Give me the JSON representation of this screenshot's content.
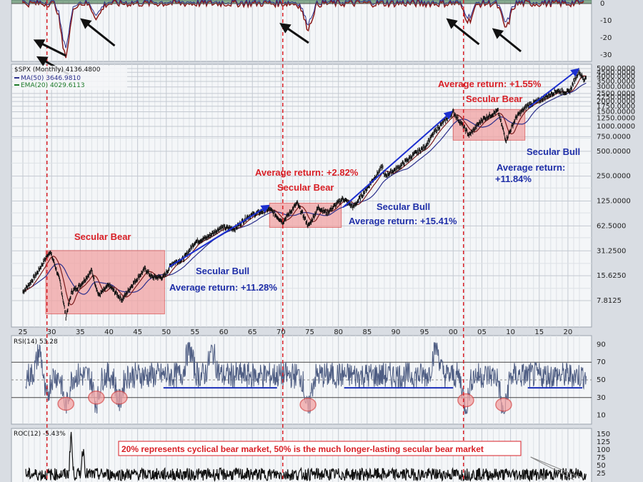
{
  "chart_data": {
    "type": "line",
    "symbol": "$SPX (Monthly) 4136.4800",
    "legend": {
      "ma50": "MA(50) 3646.9810",
      "ema20": "EMA(20) 4029.6113"
    },
    "x_tick_labels": [
      "25",
      "30",
      "35",
      "40",
      "45",
      "50",
      "55",
      "60",
      "65",
      "70",
      "75",
      "80",
      "85",
      "90",
      "95",
      "00",
      "05",
      "10",
      "15",
      "20"
    ],
    "y_axis_scale": "log",
    "y_tick_labels": [
      "5000.0000",
      "4500.0000",
      "4000.0000",
      "3500.0000",
      "3000.0000",
      "2500.0000",
      "2250.0000",
      "2000.0000",
      "1750.0000",
      "1500.0000",
      "1250.0000",
      "1000.0000",
      "750.0000",
      "500.0000",
      "250.0000",
      "125.0000",
      "62.5000",
      "31.2500",
      "15.6250",
      "7.8125"
    ],
    "dashed_year_markers": [
      "29",
      "70",
      "01"
    ],
    "series": [
      {
        "name": "$SPX",
        "color": "#111111",
        "points": [
          [
            1925.0,
            10
          ],
          [
            1926.0,
            12
          ],
          [
            1927.5,
            17
          ],
          [
            1929.7,
            31
          ],
          [
            1930.5,
            22
          ],
          [
            1931.5,
            13
          ],
          [
            1932.5,
            5
          ],
          [
            1933.5,
            10
          ],
          [
            1935.0,
            12
          ],
          [
            1937.0,
            18
          ],
          [
            1938.2,
            9
          ],
          [
            1940.0,
            12
          ],
          [
            1942.3,
            8
          ],
          [
            1944.0,
            12
          ],
          [
            1946.3,
            19
          ],
          [
            1947.5,
            15
          ],
          [
            1949.5,
            15
          ],
          [
            1951.0,
            22
          ],
          [
            1953.0,
            25
          ],
          [
            1955.0,
            40
          ],
          [
            1957.0,
            45
          ],
          [
            1959.5,
            60
          ],
          [
            1962.0,
            58
          ],
          [
            1964.0,
            80
          ],
          [
            1966.0,
            90
          ],
          [
            1968.0,
            100
          ],
          [
            1970.3,
            70
          ],
          [
            1972.8,
            118
          ],
          [
            1974.8,
            62
          ],
          [
            1976.5,
            105
          ],
          [
            1978.0,
            90
          ],
          [
            1980.8,
            135
          ],
          [
            1982.6,
            105
          ],
          [
            1985.0,
            180
          ],
          [
            1987.7,
            330
          ],
          [
            1988.0,
            250
          ],
          [
            1990.5,
            320
          ],
          [
            1993.0,
            450
          ],
          [
            1995.0,
            560
          ],
          [
            1997.0,
            900
          ],
          [
            2000.0,
            1500
          ],
          [
            2002.8,
            780
          ],
          [
            2005.0,
            1200
          ],
          [
            2007.8,
            1540
          ],
          [
            2009.2,
            680
          ],
          [
            2011.0,
            1300
          ],
          [
            2013.0,
            1800
          ],
          [
            2015.0,
            2050
          ],
          [
            2018.0,
            2700
          ],
          [
            2020.2,
            2580
          ],
          [
            2021.9,
            4700
          ],
          [
            2022.8,
            3600
          ],
          [
            2023.2,
            4136
          ]
        ]
      }
    ],
    "secular_periods": [
      {
        "label": "Secular Bear",
        "start": 1929.0,
        "end": 1950.0
      },
      {
        "label": "Secular Bull",
        "start": 1950.0,
        "end": 1968.5,
        "return": "Average return:  +11.28%"
      },
      {
        "label": "Secular Bear",
        "start": 1968.5,
        "end": 1980.5,
        "return": "Average return:  +2.82%"
      },
      {
        "label": "Secular Bull",
        "start": 1980.5,
        "end": 2000.0,
        "return": "Average return:  +15.41%"
      },
      {
        "label": "Secular Bear",
        "start": 2000.0,
        "end": 2013.0,
        "return": "Average return:  +1.55%"
      },
      {
        "label": "Secular Bull",
        "start": 2013.0,
        "end": 2022.0,
        "return": "Average return:\n+11.84%"
      }
    ],
    "rsi_panel": {
      "label": "RSI(14) 53.28",
      "y_tick_labels": [
        "90",
        "70",
        "50",
        "30",
        "10"
      ],
      "levels": [
        70,
        30
      ]
    },
    "roc_panel": {
      "label": "ROC(12) -5.43%",
      "y_tick_labels": [
        "150",
        "125",
        "100",
        "75",
        "50",
        "25"
      ],
      "note": "20% represents cyclical bear market, 50% is the much longer-lasting secular bear market"
    },
    "top_panel": {
      "y_tick_labels": [
        "0",
        "-10",
        "-20",
        "-30"
      ]
    }
  },
  "colors": {
    "price": "#111111",
    "ma": "#2b2f8c",
    "ema": "#7a1b1b",
    "bear_fill": "#f2a3a3",
    "bear_stroke": "#d84b4b",
    "arrow_blue": "#1c2fd0",
    "dashed_red": "#d81f26",
    "panel_bg": "#f4f6f8"
  }
}
